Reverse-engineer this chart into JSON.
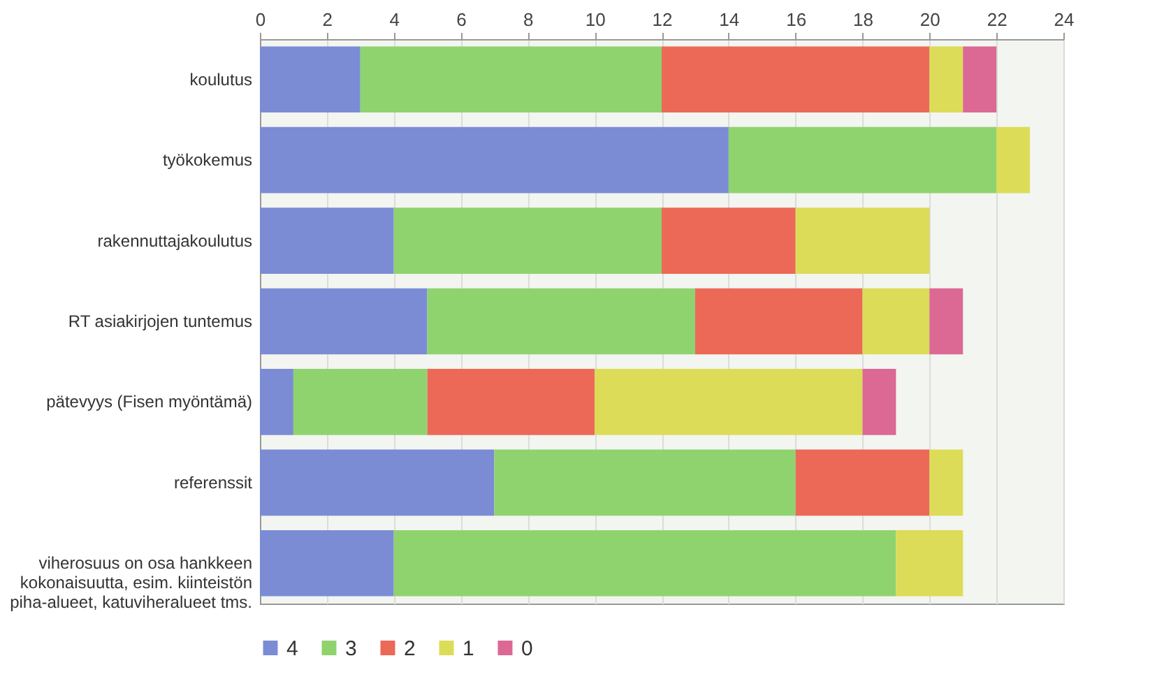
{
  "chart_data": {
    "type": "bar",
    "orientation": "horizontal",
    "stacked": true,
    "categories": [
      "koulutus",
      "työkokemus",
      "rakennuttajakoulutus",
      "RT asiakirjojen tuntemus",
      "pätevyys (Fisen myöntämä)",
      "referenssit",
      "viherosuus on osa hankkeen kokonaisuutta, esim. kiinteistön piha-alueet, katuviheralueet tms."
    ],
    "series": [
      {
        "name": "4",
        "color": "#7b8cd4",
        "values": [
          3,
          14,
          4,
          5,
          1,
          7,
          4
        ]
      },
      {
        "name": "3",
        "color": "#8fd36f",
        "values": [
          9,
          8,
          8,
          8,
          4,
          9,
          15
        ]
      },
      {
        "name": "2",
        "color": "#ec6957",
        "values": [
          8,
          0,
          4,
          5,
          5,
          4,
          0
        ]
      },
      {
        "name": "1",
        "color": "#dcdc58",
        "values": [
          1,
          1,
          4,
          2,
          8,
          1,
          2
        ]
      },
      {
        "name": "0",
        "color": "#dc6894",
        "values": [
          1,
          0,
          0,
          1,
          1,
          0,
          0
        ]
      }
    ],
    "xlim": [
      0,
      24
    ],
    "xticks": [
      0,
      2,
      4,
      6,
      8,
      10,
      12,
      14,
      16,
      18,
      20,
      22,
      24
    ],
    "grid": "x",
    "legend": "bottom"
  }
}
